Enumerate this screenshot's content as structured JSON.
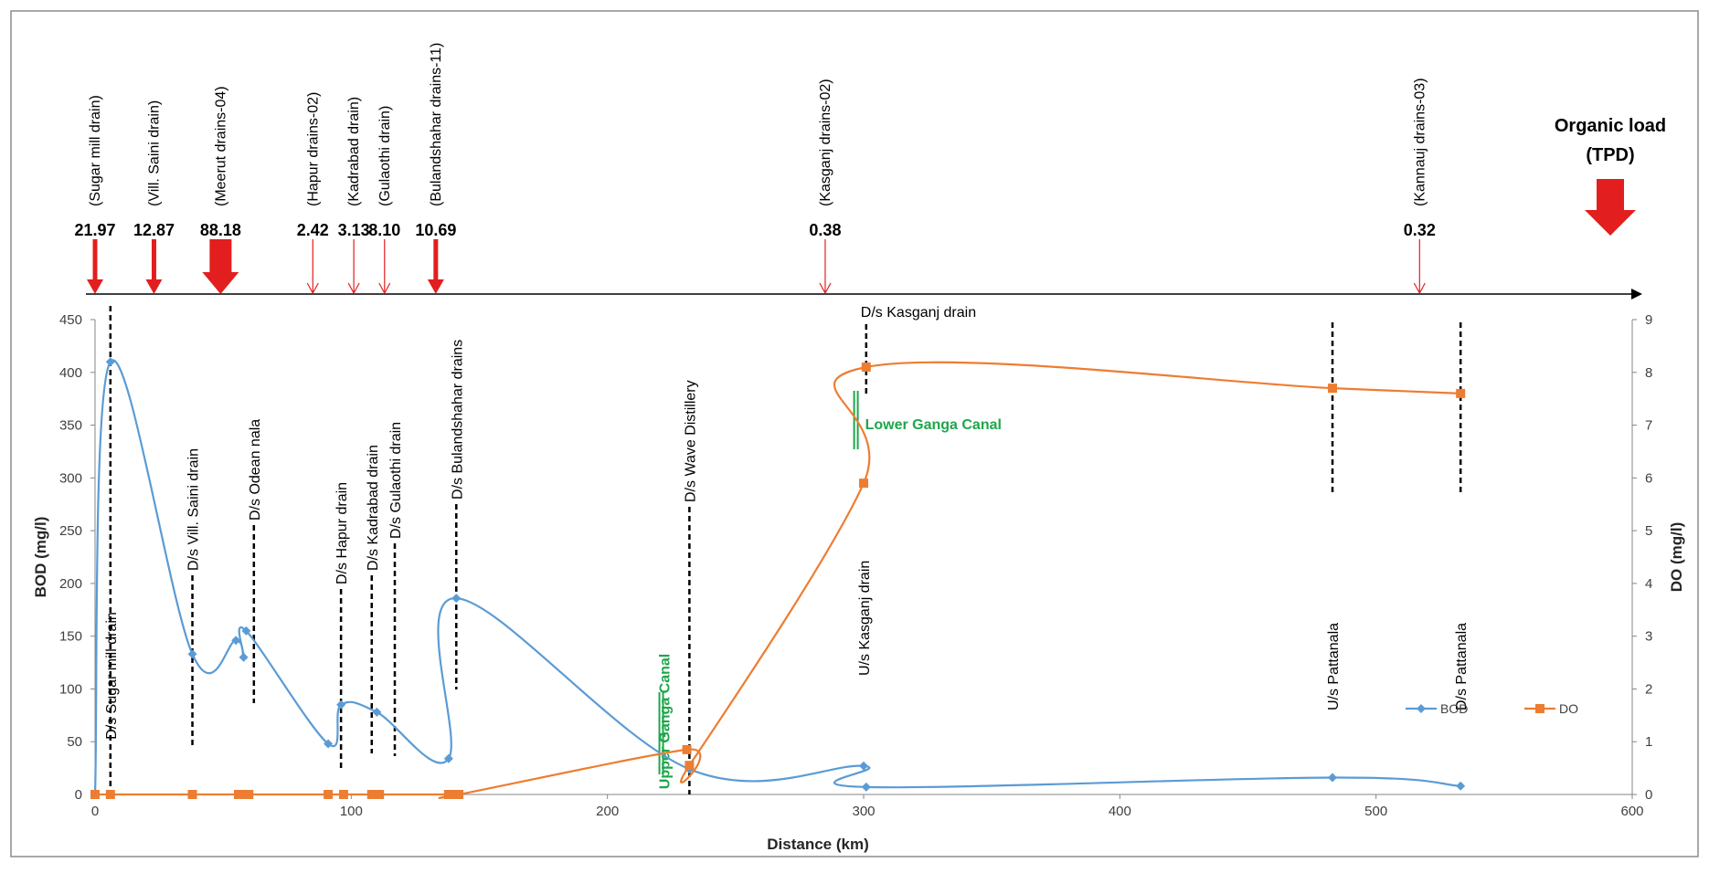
{
  "chart_data": {
    "type": "line",
    "xlabel": "Distance (km)",
    "ylabel": "BOD (mg/l)",
    "y2label": "DO (mg/l)",
    "xlim": [
      0,
      600
    ],
    "ylim": [
      0,
      450
    ],
    "y2lim": [
      0,
      9
    ],
    "x_ticks": [
      "0",
      "100",
      "200",
      "300",
      "400",
      "500",
      "600"
    ],
    "y_ticks": [
      "0",
      "50",
      "100",
      "150",
      "200",
      "250",
      "300",
      "350",
      "400",
      "450"
    ],
    "y2_ticks": [
      "0",
      "1",
      "2",
      "3",
      "4",
      "5",
      "6",
      "7",
      "8",
      "9"
    ],
    "legend_position": "right-lower",
    "series": [
      {
        "name": "BOD",
        "axis": "left",
        "color": "#5b9bd5",
        "marker": "diamond",
        "x": [
          0,
          6,
          38,
          55,
          58,
          59,
          91,
          96,
          110,
          138,
          141,
          232,
          300,
          301,
          483,
          533
        ],
        "y": [
          0,
          410,
          133,
          146,
          130,
          155,
          48,
          85,
          78,
          34,
          186,
          24,
          27,
          7,
          16,
          8
        ]
      },
      {
        "name": "DO",
        "axis": "right",
        "color": "#ed7d31",
        "marker": "square",
        "x": [
          0,
          6,
          38,
          56,
          58,
          60,
          91,
          97,
          108,
          111,
          138,
          140,
          142,
          231,
          232,
          300,
          301,
          483,
          533
        ],
        "y": [
          0,
          0,
          0,
          0,
          0,
          0,
          0,
          0,
          0,
          0,
          0,
          0,
          0,
          0.85,
          0.55,
          5.9,
          8.1,
          7.7,
          7.6
        ]
      }
    ],
    "organic_load": {
      "title_line1": "Organic load",
      "title_line2": "(TPD)",
      "drains": [
        {
          "name": "(Sugar mill drain)",
          "value": "21.97",
          "x": 0,
          "weight": "medium"
        },
        {
          "name": "(Vill. Saini drain)",
          "value": "12.87",
          "x": 23,
          "weight": "medium"
        },
        {
          "name": "(Meerut drains-04)",
          "value": "88.18",
          "x": 49,
          "weight": "heavy"
        },
        {
          "name": "(Hapur drains-02)",
          "value": "2.42",
          "x": 85,
          "weight": "light"
        },
        {
          "name": "(Kadrabad drain)",
          "value": "3.13",
          "x": 101,
          "weight": "light"
        },
        {
          "name": "(Gulaothi drain)",
          "value": "8.10",
          "x": 113,
          "weight": "light"
        },
        {
          "name": "(Bulandshahar drains-11)",
          "value": "10.69",
          "x": 133,
          "weight": "medium"
        },
        {
          "name": "(Kasganj drains-02)",
          "value": "0.38",
          "x": 285,
          "weight": "light"
        },
        {
          "name": "(Kannauj drains-03)",
          "value": "0.32",
          "x": 517,
          "weight": "light"
        }
      ]
    },
    "station_labels": [
      {
        "text": "D/s Sugar mill drain",
        "x": 6
      },
      {
        "text": "D/s Vill. Saini drain",
        "x": 38
      },
      {
        "text": "D/s Odean nala",
        "x": 62
      },
      {
        "text": "D/s  Hapur drain",
        "x": 96
      },
      {
        "text": "D/s  Kadrabad drain",
        "x": 108
      },
      {
        "text": "D/s  Gulaothi  drain",
        "x": 117
      },
      {
        "text": "D/s Bulandshahar drains",
        "x": 141
      },
      {
        "text": "D/s Wave Distillery",
        "x": 232
      },
      {
        "text": "U/s Kasganj drain",
        "x": 300
      },
      {
        "text": "D/s Kasganj drain",
        "x": 301
      },
      {
        "text": "U/s Pattanala",
        "x": 483
      },
      {
        "text": "D/s Pattanala",
        "x": 533
      }
    ],
    "canals": [
      {
        "text": "Upper Ganga Canal",
        "x": 221,
        "color": "#1ea64a"
      },
      {
        "text": "Lower Ganga Canal",
        "x": 297,
        "color": "#1ea64a"
      }
    ]
  }
}
